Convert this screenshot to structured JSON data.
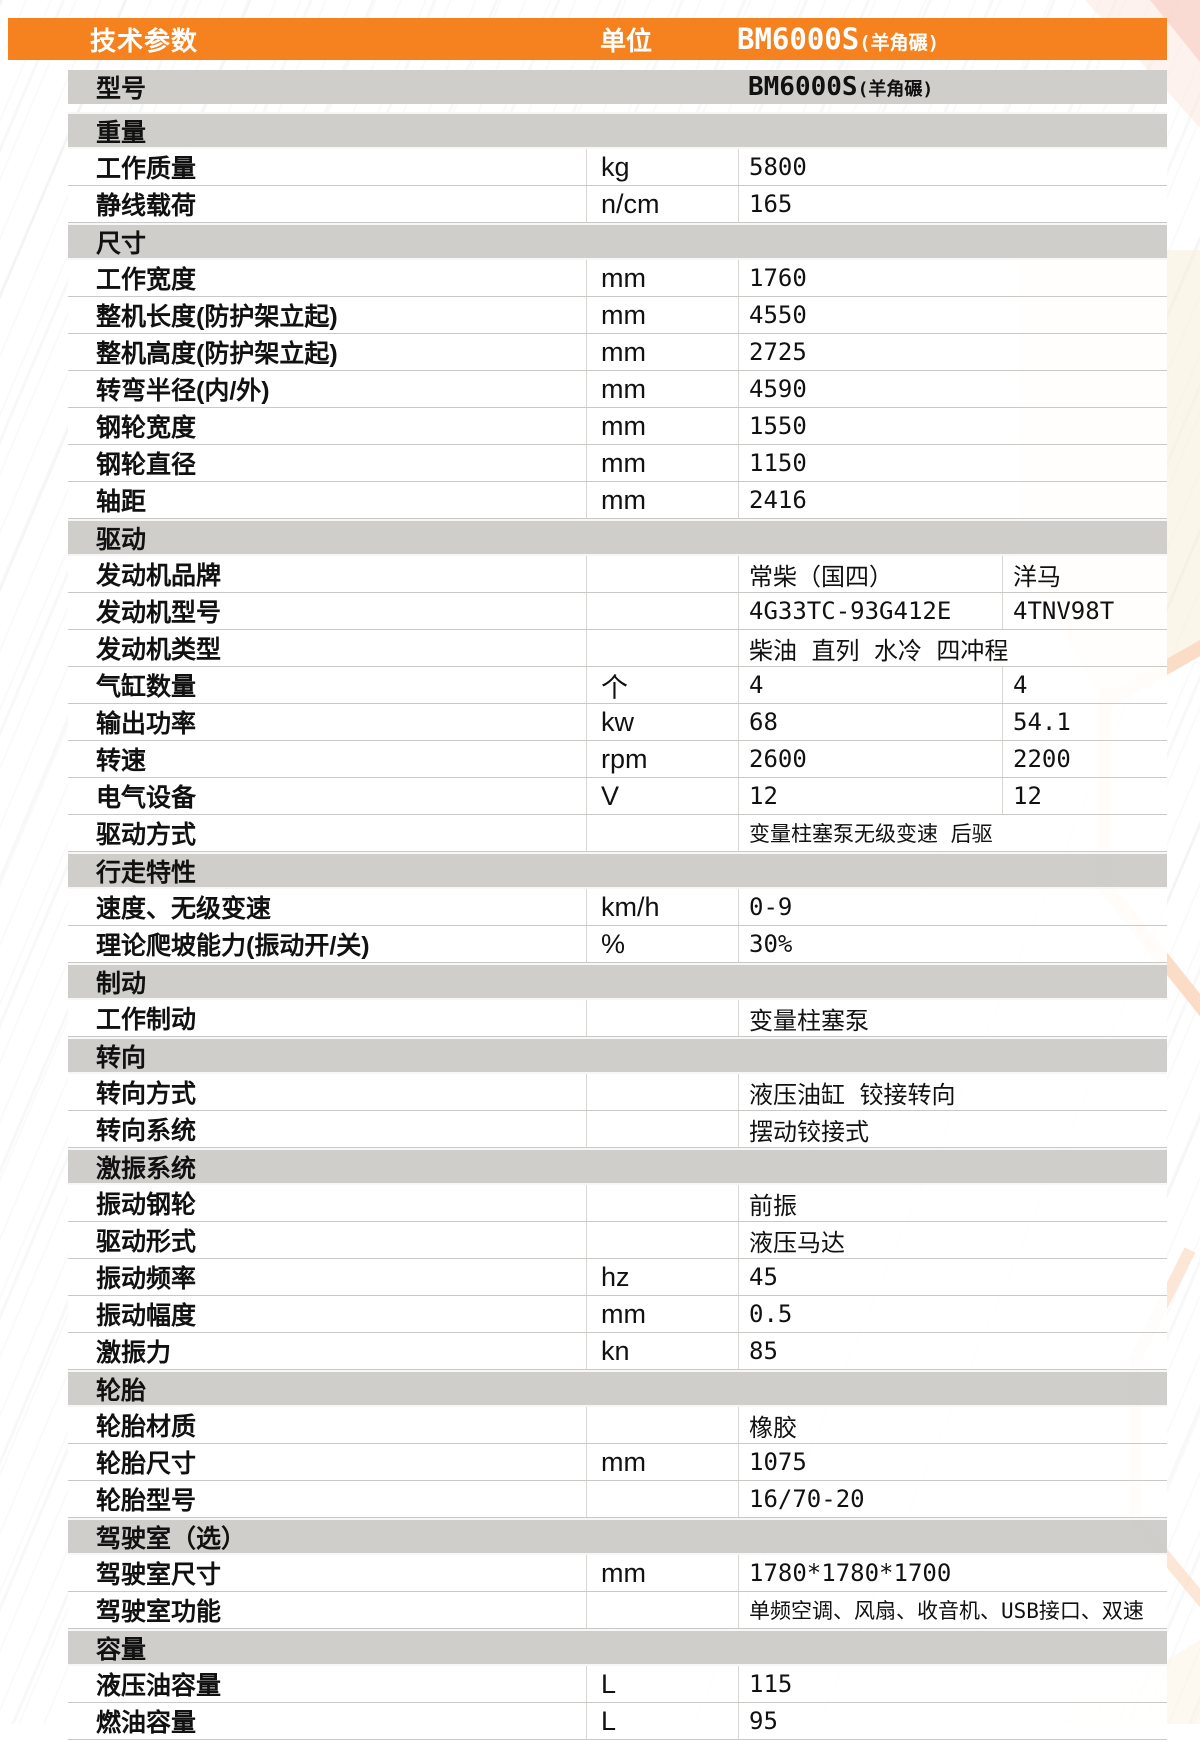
{
  "colors": {
    "accent_orange": "#f5821f",
    "section_gray": "#cdccc9",
    "decor_peach": "#fad7bd",
    "decor_cream": "#f6eed5",
    "decor_pink": "#f8dcd2"
  },
  "header": {
    "title": "技术参数",
    "unit_label": "单位",
    "model_main": "BM6000S",
    "model_sub": "(羊角碾)"
  },
  "model_row": {
    "label": "型号",
    "value_main": "BM6000S",
    "value_sub": "(羊角碾)"
  },
  "sections": [
    {
      "title": "重量",
      "rows": [
        {
          "name": "工作质量",
          "unit": "kg",
          "values": [
            "5800"
          ]
        },
        {
          "name": "静线载荷",
          "unit": "n/cm",
          "values": [
            "165"
          ]
        }
      ]
    },
    {
      "title": "尺寸",
      "rows": [
        {
          "name": "工作宽度",
          "unit": "mm",
          "values": [
            "1760"
          ]
        },
        {
          "name": "整机长度(防护架立起)",
          "unit": "mm",
          "values": [
            "4550"
          ]
        },
        {
          "name": "整机高度(防护架立起)",
          "unit": "mm",
          "values": [
            "2725"
          ]
        },
        {
          "name": "转弯半径(内/外)",
          "unit": "mm",
          "values": [
            "4590"
          ]
        },
        {
          "name": "钢轮宽度",
          "unit": "mm",
          "values": [
            "1550"
          ]
        },
        {
          "name": "钢轮直径",
          "unit": "mm",
          "values": [
            "1150"
          ]
        },
        {
          "name": "轴距",
          "unit": "mm",
          "values": [
            "2416"
          ]
        }
      ]
    },
    {
      "title": "驱动",
      "rows": [
        {
          "name": "发动机品牌",
          "unit": "",
          "values": [
            "常柴（国四）",
            "洋马"
          ]
        },
        {
          "name": "发动机型号",
          "unit": "",
          "values": [
            "4G33TC-93G412E",
            "4TNV98T"
          ]
        },
        {
          "name": "发动机类型",
          "unit": "",
          "values": [
            "柴油 直列 水冷 四冲程"
          ]
        },
        {
          "name": "气缸数量",
          "unit": "个",
          "values": [
            "4",
            "4"
          ]
        },
        {
          "name": "输出功率",
          "unit": "kw",
          "values": [
            "68",
            "54.1"
          ]
        },
        {
          "name": "转速",
          "unit": "rpm",
          "values": [
            "2600",
            "2200"
          ]
        },
        {
          "name": "电气设备",
          "unit": "V",
          "values": [
            "12",
            "12"
          ]
        },
        {
          "name": "驱动方式",
          "unit": "",
          "values": [
            "变量柱塞泵无级变速  后驱"
          ],
          "small": true
        }
      ]
    },
    {
      "title": "行走特性",
      "rows": [
        {
          "name": "速度、无级变速",
          "unit": "km/h",
          "values": [
            "0-9"
          ]
        },
        {
          "name": "理论爬坡能力(振动开/关)",
          "unit": "%",
          "values": [
            "30%"
          ]
        }
      ]
    },
    {
      "title": "制动",
      "rows": [
        {
          "name": "工作制动",
          "unit": "",
          "values": [
            "变量柱塞泵"
          ]
        }
      ]
    },
    {
      "title": "转向",
      "rows": [
        {
          "name": "转向方式",
          "unit": "",
          "values": [
            "液压油缸 铰接转向"
          ]
        },
        {
          "name": "转向系统",
          "unit": "",
          "values": [
            "摆动铰接式"
          ]
        }
      ]
    },
    {
      "title": "激振系统",
      "rows": [
        {
          "name": "振动钢轮",
          "unit": "",
          "values": [
            "前振"
          ]
        },
        {
          "name": "驱动形式",
          "unit": "",
          "values": [
            "液压马达"
          ]
        },
        {
          "name": "振动频率",
          "unit": "hz",
          "values": [
            "45"
          ]
        },
        {
          "name": "振动幅度",
          "unit": "mm",
          "values": [
            "0.5"
          ]
        },
        {
          "name": "激振力",
          "unit": "kn",
          "values": [
            "85"
          ]
        }
      ]
    },
    {
      "title": "轮胎",
      "rows": [
        {
          "name": "轮胎材质",
          "unit": "",
          "values": [
            "橡胶"
          ]
        },
        {
          "name": "轮胎尺寸",
          "unit": "mm",
          "values": [
            "1075"
          ]
        },
        {
          "name": "轮胎型号",
          "unit": "",
          "values": [
            "16/70-20"
          ]
        }
      ]
    },
    {
      "title": "驾驶室（选）",
      "rows": [
        {
          "name": "驾驶室尺寸",
          "unit": "mm",
          "values": [
            "1780*1780*1700"
          ]
        },
        {
          "name": "驾驶室功能",
          "unit": "",
          "values": [
            "单频空调、风扇、收音机、USB接口、双速"
          ],
          "small": true
        }
      ]
    },
    {
      "title": "容量",
      "rows": [
        {
          "name": "液压油容量",
          "unit": "L",
          "values": [
            "115"
          ]
        },
        {
          "name": "燃油容量",
          "unit": "L",
          "values": [
            "95"
          ]
        }
      ]
    }
  ]
}
